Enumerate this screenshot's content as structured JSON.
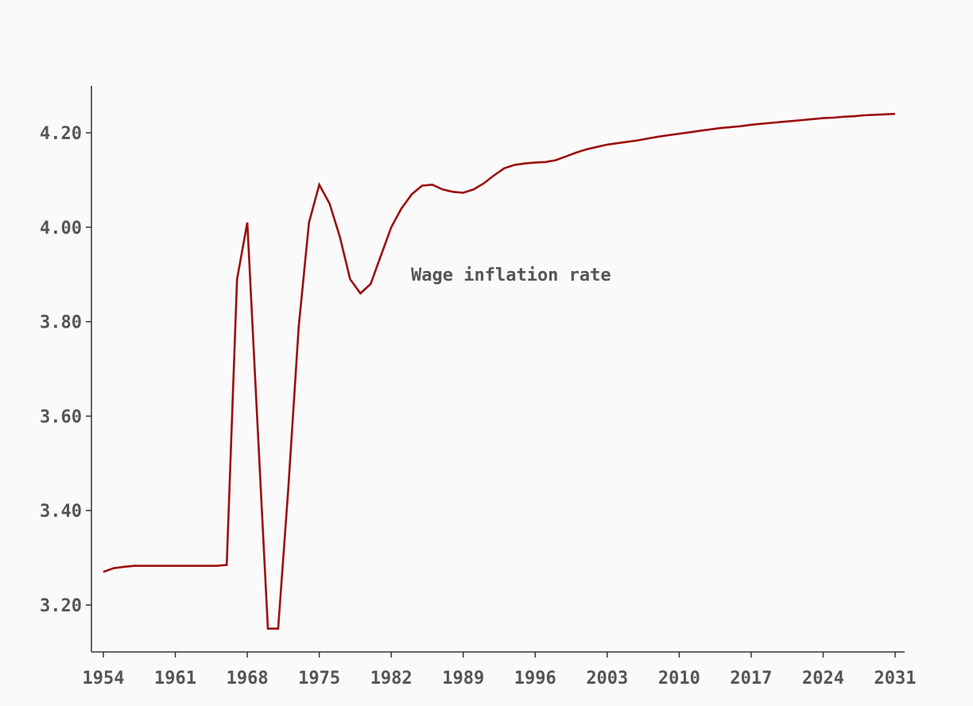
{
  "chart_data": {
    "type": "line",
    "title": "",
    "xlabel": "",
    "ylabel": "",
    "xlim": [
      1953,
      2032
    ],
    "ylim": [
      3.11,
      4.3
    ],
    "x_ticks": [
      1954,
      1961,
      1968,
      1975,
      1982,
      1989,
      1996,
      2003,
      2010,
      2017,
      2024,
      2031
    ],
    "y_ticks": [
      3.2,
      3.4,
      3.6,
      3.8,
      4.0,
      4.2
    ],
    "y_tick_labels": [
      "3.20",
      "3.40",
      "3.60",
      "3.80",
      "4.00",
      "4.20"
    ],
    "grid": false,
    "line_color": "#9b0e0e",
    "text_color": "#555555",
    "axis_color": "#333333",
    "background": "#fbfafa",
    "series": [
      {
        "name": "Wage inflation rate",
        "x": [
          1954,
          1955,
          1956,
          1957,
          1958,
          1959,
          1960,
          1961,
          1962,
          1963,
          1964,
          1965,
          1966,
          1967,
          1968,
          1969,
          1970,
          1971,
          1972,
          1973,
          1974,
          1975,
          1976,
          1977,
          1978,
          1979,
          1980,
          1981,
          1982,
          1983,
          1984,
          1985,
          1986,
          1987,
          1988,
          1989,
          1990,
          1991,
          1992,
          1993,
          1994,
          1995,
          1996,
          1997,
          1998,
          1999,
          2000,
          2001,
          2002,
          2003,
          2004,
          2005,
          2006,
          2007,
          2008,
          2009,
          2010,
          2011,
          2012,
          2013,
          2014,
          2015,
          2016,
          2017,
          2018,
          2019,
          2020,
          2021,
          2022,
          2023,
          2024,
          2025,
          2026,
          2027,
          2028,
          2029,
          2030,
          2031
        ],
        "y": [
          3.27,
          3.278,
          3.281,
          3.283,
          3.283,
          3.283,
          3.283,
          3.283,
          3.283,
          3.283,
          3.283,
          3.283,
          3.285,
          3.89,
          4.01,
          3.58,
          3.15,
          3.15,
          3.45,
          3.79,
          4.01,
          4.09,
          4.05,
          3.98,
          3.89,
          3.86,
          3.88,
          3.94,
          4.0,
          4.04,
          4.07,
          4.088,
          4.09,
          4.08,
          4.075,
          4.073,
          4.08,
          4.093,
          4.11,
          4.125,
          4.132,
          4.135,
          4.137,
          4.138,
          4.142,
          4.15,
          4.158,
          4.165,
          4.17,
          4.175,
          4.178,
          4.181,
          4.184,
          4.188,
          4.192,
          4.195,
          4.198,
          4.201,
          4.204,
          4.207,
          4.21,
          4.212,
          4.214,
          4.217,
          4.219,
          4.221,
          4.223,
          4.225,
          4.227,
          4.229,
          4.231,
          4.232,
          4.234,
          4.235,
          4.237,
          4.238,
          4.239,
          4.24
        ]
      }
    ]
  }
}
